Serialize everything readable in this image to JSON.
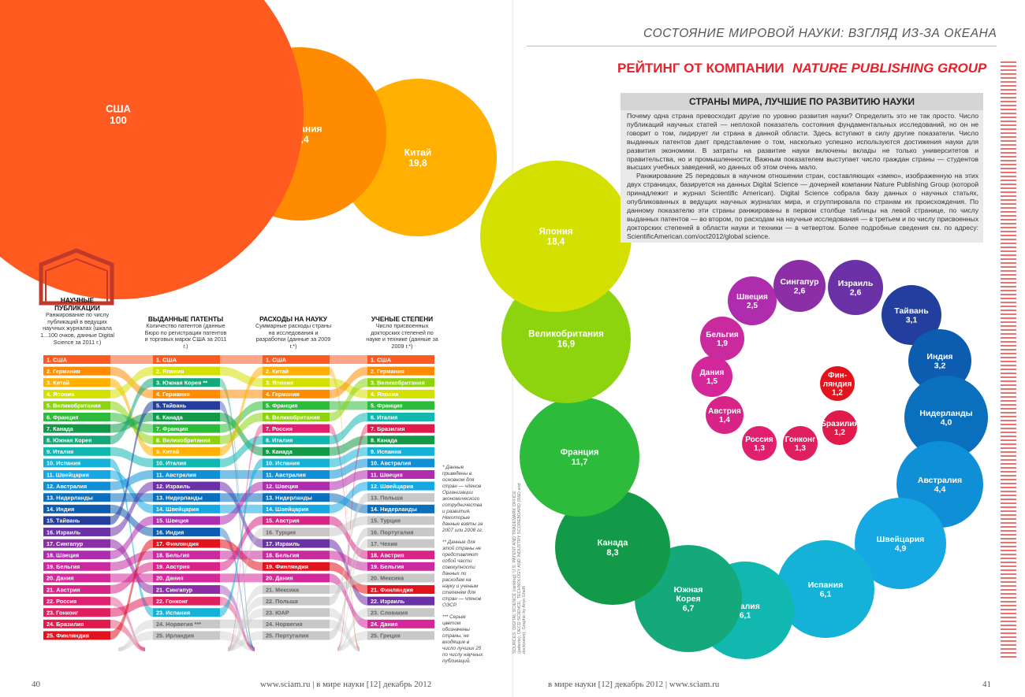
{
  "header": {
    "running_title": "СОСТОЯНИЕ МИРОВОЙ НАУКИ: ВЗГЛЯД ИЗ-ЗА ОКЕАНА",
    "ranking_title_plain": "РЕЙТИНГ ОТ КОМПАНИИ",
    "ranking_title_brand": "NATURE PUBLISHING GROUP"
  },
  "intro": {
    "title": "СТРАНЫ МИРА, ЛУЧШИЕ ПО РАЗВИТИЮ НАУКИ",
    "paragraph1": "Почему одна страна превосходит другие по уровню развития науки? Определить это не так просто. Число публикаций научных статей — неплохой показатель состояния фундаментальных исследований, но он не говорит о том, лидирует ли страна в данной области. Здесь вступают в силу другие показатели. Число выданных патентов дает представление о том, насколько успешно используются достижения науки для развития экономики. В затраты на развитие науки включены вклады не только университетов и правительства, но и промышленности. Важным показателем выступает число граждан страны — студентов высших учебных заведений, но данных об этом очень мало.",
    "paragraph2": "Ранжирование 25 передовых в научном отношении стран, составляющих «змею», изображенную на этих двух страницах, базируется на данных Digital Science — дочерней компании Nature Publishing Group (которой принадлежит и журнал Scientific American). Digital Science собрала базу данных о научных статьях, опубликованных в ведущих научных журналах мира, и сгруппировала по странам их происхождения. По данному показателю эти страны ранжированы в первом столбце таблицы на левой странице, по числу выданных патентов — во втором, по расходам на научные исследования — в третьем и по числу присвоенных докторских степеней в области науки и техники — в четвертом. Более подробные сведения см. по адресу: ScientificAmerican.com/oct2012/global science."
  },
  "columns": [
    {
      "title": "НАУЧНЫЕ ПУБЛИКАЦИИ",
      "desc": "Ранжирование по числу публикаций в ведущих научных журналах (шкала 1...100 очков, данные Digital Science за 2011 г.)"
    },
    {
      "title": "ВЫДАННЫЕ ПАТЕНТЫ",
      "desc": "Количество патентов (данные Бюро по регистрации патентов и торговых марок США за 2011 г.)"
    },
    {
      "title": "РАСХОДЫ НА НАУКУ",
      "desc": "Суммарные расходы страны на исследования и разработки (данные за 2009 г.*)"
    },
    {
      "title": "УЧЕНЫЕ СТЕПЕНИ",
      "desc": "Число присвоенных докторских степеней по науке и технике (данные за 2009 г.*)"
    }
  ],
  "footnotes": [
    "* Данные приведены в основном для стран — членов Организации экономического сотрудничества и развития. Некоторые данные взяты за 2007 или 2008 гг.",
    "** Данные для этой страны не представляют собой части совокупности данных по расходам на науку и ученым степеням для стран — членов ОЭСР.",
    "*** Серым цветом обозначены страны, не входящие в число лучших 25 по числу научных публикаций."
  ],
  "sources": "SOURCES: DIGITAL SCIENCE (ranking); U.S. PATENT AND TRADEMARK OFFICE (patents); OECD SCIENCE, TECHNOLOGY AND INDUSTRY SCOREBOARD (R&D and doctorates); Graphic by Arno Ghelfi",
  "footer": {
    "left_page": "40",
    "left_text": "www.sciam.ru | в мире науки [12] декабрь 2012",
    "right_text": "в мире науки [12] декабрь 2012 | www.sciam.ru",
    "right_page": "41"
  },
  "icon": "hexagon-house-icon",
  "chart_data": {
    "type": "bubble",
    "title": "СТРАНЫ МИРА, ЛУЧШИЕ ПО РАЗВИТИЮ НАУКИ",
    "value_label": "Научные публикации (шкала 1...100 очков)",
    "series": [
      {
        "rank": 1,
        "country": "США",
        "value": "100",
        "v": 100,
        "color": "#ff5a1f"
      },
      {
        "rank": 2,
        "country": "Германия",
        "value": "20,4",
        "v": 20.4,
        "color": "#ff8c00"
      },
      {
        "rank": 3,
        "country": "Китай",
        "value": "19,8",
        "v": 19.8,
        "color": "#ffb000"
      },
      {
        "rank": 4,
        "country": "Япония",
        "value": "18,4",
        "v": 18.4,
        "color": "#d3e000"
      },
      {
        "rank": 5,
        "country": "Великобритания",
        "value": "16,9",
        "v": 16.9,
        "color": "#8dd40f"
      },
      {
        "rank": 6,
        "country": "Франция",
        "value": "11,7",
        "v": 11.7,
        "color": "#2dbb3c"
      },
      {
        "rank": 7,
        "country": "Канада",
        "value": "8,3",
        "v": 8.3,
        "color": "#139a48"
      },
      {
        "rank": 8,
        "country": "Южная Корея",
        "value": "6,7",
        "v": 6.7,
        "color": "#14a87a"
      },
      {
        "rank": 9,
        "country": "Италия",
        "value": "6,1",
        "v": 6.1,
        "color": "#10b8b0"
      },
      {
        "rank": 10,
        "country": "Испания",
        "value": "6,1",
        "v": 6.1,
        "color": "#13b2d6"
      },
      {
        "rank": 11,
        "country": "Швейцария",
        "value": "4,9",
        "v": 4.9,
        "color": "#15a8e2"
      },
      {
        "rank": 12,
        "country": "Австралия",
        "value": "4,4",
        "v": 4.4,
        "color": "#0f8fd6"
      },
      {
        "rank": 13,
        "country": "Нидерланды",
        "value": "4,0",
        "v": 4.0,
        "color": "#0a6fbd"
      },
      {
        "rank": 14,
        "country": "Индия",
        "value": "3,2",
        "v": 3.2,
        "color": "#0c5cb0"
      },
      {
        "rank": 15,
        "country": "Тайвань",
        "value": "3,1",
        "v": 3.1,
        "color": "#233e9d"
      },
      {
        "rank": 16,
        "country": "Израиль",
        "value": "2,6",
        "v": 2.6,
        "color": "#6b32a8"
      },
      {
        "rank": 17,
        "country": "Сингапур",
        "value": "2,6",
        "v": 2.6,
        "color": "#8c2ea6"
      },
      {
        "rank": 18,
        "country": "Швеция",
        "value": "2,5",
        "v": 2.5,
        "color": "#b02cae"
      },
      {
        "rank": 19,
        "country": "Бельгия",
        "value": "1,9",
        "v": 1.9,
        "color": "#c92a9e"
      },
      {
        "rank": 20,
        "country": "Дания",
        "value": "1,5",
        "v": 1.5,
        "color": "#d4279a"
      },
      {
        "rank": 21,
        "country": "Австрия",
        "value": "1,4",
        "v": 1.4,
        "color": "#d92487"
      },
      {
        "rank": 22,
        "country": "Россия",
        "value": "1,3",
        "v": 1.3,
        "color": "#e0206f"
      },
      {
        "rank": 23,
        "country": "Гонконг",
        "value": "1,3",
        "v": 1.3,
        "color": "#e01f5e"
      },
      {
        "rank": 24,
        "country": "Бразилия",
        "value": "1,2",
        "v": 1.2,
        "color": "#e01a4a"
      },
      {
        "rank": 25,
        "country": "Финляндия",
        "value": "1,2",
        "v": 1.2,
        "color": "#e3131e"
      }
    ],
    "rankings": {
      "publications": [
        "1. США",
        "2. Германия",
        "3. Китай",
        "4. Япония",
        "5. Великобритания",
        "6. Франция",
        "7. Канада",
        "8. Южная Корея",
        "9. Италия",
        "10. Испания",
        "11. Швейцария",
        "12. Австралия",
        "13. Нидерланды",
        "14. Индия",
        "15. Тайвань",
        "16. Израиль",
        "17. Сингапур",
        "18. Швеция",
        "19. Бельгия",
        "20. Дания",
        "21. Австрия",
        "22. Россия",
        "23. Гонконг",
        "24. Бразилия",
        "25. Финляндия"
      ],
      "patents": [
        "1. США",
        "2. Япония",
        "3. Южная Корея **",
        "4. Германия",
        "5. Тайвань",
        "6. Канада",
        "7. Франция",
        "8. Великобритания",
        "9. Китай",
        "10. Италия",
        "11. Австралия",
        "12. Израиль",
        "13. Нидерланды",
        "14. Швейцария",
        "15. Швеция",
        "16. Индия",
        "17. Финляндия",
        "18. Бельгия",
        "19. Австрия",
        "20. Дания",
        "21. Сингапур",
        "22. Гонконг",
        "23. Испания",
        "24. Норвегия ***",
        "25. Ирландия"
      ],
      "rd_spending": [
        "1. США",
        "2. Китай",
        "3. Япония",
        "4. Германия",
        "5. Франция",
        "6. Великобритания",
        "7. Россия",
        "8. Италия",
        "9. Канада",
        "10. Испания",
        "11. Австралия",
        "12. Швеция",
        "13. Нидерланды",
        "14. Швейцария",
        "15. Австрия",
        "16. Турция",
        "17. Израиль",
        "18. Бельгия",
        "19. Финляндия",
        "20. Дания",
        "21. Мексика",
        "22. Польша",
        "23. ЮАР",
        "24. Норвегия",
        "25. Португалия"
      ],
      "doctorates": [
        "1. США",
        "2. Германия",
        "3. Великобритания",
        "4. Япония",
        "5. Франция",
        "6. Италия",
        "7. Бразилия",
        "8. Канада",
        "9. Испания",
        "10. Австралия",
        "11. Швеция",
        "12. Швейцария",
        "13. Польша",
        "14. Нидерланды",
        "15. Турция",
        "16. Португалия",
        "17. Чехия",
        "18. Австрия",
        "19. Бельгия",
        "20. Мексика",
        "21. Финляндия",
        "22. Израиль",
        "23. Словакия",
        "24. Дания",
        "25. Греция"
      ]
    },
    "gray_entries": [
      "Турция",
      "Мексика",
      "Польша",
      "ЮАР",
      "Норвегия",
      "Португалия",
      "Чехия",
      "Словакия",
      "Греция",
      "Ирландия"
    ]
  }
}
